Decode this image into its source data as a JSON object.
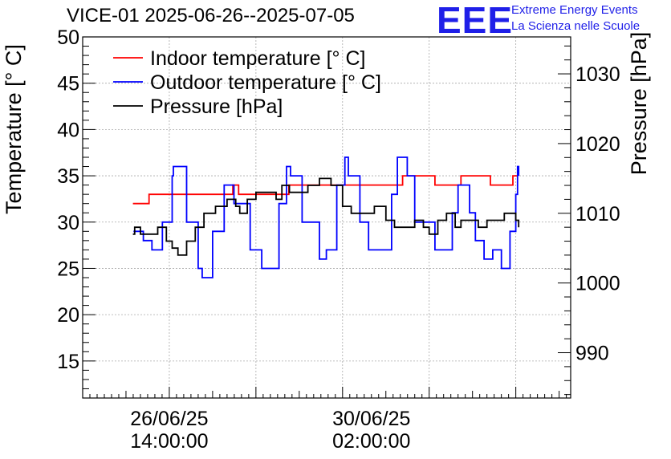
{
  "title": "VICE-01 2025-06-26--2025-07-05",
  "logo": {
    "mark": "EEE",
    "line1": "Extreme Energy Events",
    "line2": "La Scienza nelle Scuole"
  },
  "chart_data": {
    "type": "line",
    "title": "VICE-01 2025-06-26--2025-07-05",
    "y_left": {
      "label": "Temperature [° C]",
      "range": [
        11,
        50
      ],
      "ticks": [
        15,
        20,
        25,
        30,
        35,
        40,
        45,
        50
      ]
    },
    "y_right": {
      "label": "Pressure [hPa]",
      "range": [
        983.5,
        1035.3
      ],
      "ticks": [
        990,
        1000,
        1010,
        1020,
        1030
      ]
    },
    "x": {
      "range": [
        -1.5,
        6.95
      ],
      "unit": "days from 26/06/25 14:00:00",
      "tick_labels": [
        {
          "at": 0,
          "date": "26/06/25",
          "time": "14:00:00"
        },
        {
          "at": 3.5,
          "date": "30/06/25",
          "time": "02:00:00"
        }
      ]
    },
    "grid": true,
    "legend": {
      "placement": "top-left",
      "entries": [
        {
          "label": "Indoor temperature [° C]",
          "color": "#ff0000"
        },
        {
          "label": "Outdoor temperature [° C]",
          "color": "#0000ff"
        },
        {
          "label": "Pressure [hPa]",
          "color": "#000000"
        }
      ]
    },
    "series": [
      {
        "name": "Indoor temperature [° C]",
        "axis": "left",
        "color": "#ff0000",
        "points": [
          [
            -0.63,
            32
          ],
          [
            -0.35,
            32
          ],
          [
            -0.35,
            33
          ],
          [
            1.1,
            33
          ],
          [
            1.1,
            34
          ],
          [
            1.2,
            34
          ],
          [
            1.2,
            33
          ],
          [
            2.07,
            33
          ],
          [
            2.07,
            34
          ],
          [
            4.04,
            34
          ],
          [
            4.04,
            35
          ],
          [
            4.6,
            35
          ],
          [
            4.6,
            34
          ],
          [
            5.05,
            34
          ],
          [
            5.05,
            35
          ],
          [
            5.56,
            35
          ],
          [
            5.56,
            34
          ],
          [
            5.95,
            34
          ],
          [
            5.95,
            35
          ],
          [
            6.03,
            35
          ]
        ]
      },
      {
        "name": "Outdoor temperature [° C]",
        "axis": "left",
        "color": "#0000ff",
        "points": [
          [
            -0.62,
            29
          ],
          [
            -0.45,
            28
          ],
          [
            -0.3,
            27
          ],
          [
            -0.12,
            30
          ],
          [
            0.05,
            35
          ],
          [
            0.07,
            36
          ],
          [
            0.12,
            36
          ],
          [
            0.3,
            30
          ],
          [
            0.5,
            25
          ],
          [
            0.57,
            24
          ],
          [
            0.75,
            29
          ],
          [
            0.95,
            34
          ],
          [
            1.02,
            34
          ],
          [
            1.12,
            32
          ],
          [
            1.4,
            27
          ],
          [
            1.6,
            25
          ],
          [
            1.7,
            25
          ],
          [
            1.9,
            32
          ],
          [
            2.03,
            36
          ],
          [
            2.1,
            35
          ],
          [
            2.3,
            30
          ],
          [
            2.6,
            26
          ],
          [
            2.72,
            27
          ],
          [
            2.9,
            34
          ],
          [
            3.04,
            37
          ],
          [
            3.1,
            35
          ],
          [
            3.3,
            30
          ],
          [
            3.45,
            27
          ],
          [
            3.6,
            27
          ],
          [
            3.85,
            33
          ],
          [
            3.95,
            37
          ],
          [
            4.02,
            37
          ],
          [
            4.12,
            35
          ],
          [
            4.25,
            30
          ],
          [
            4.3,
            30
          ],
          [
            4.5,
            30
          ],
          [
            4.6,
            27
          ],
          [
            4.75,
            27
          ],
          [
            4.9,
            31
          ],
          [
            5.0,
            34
          ],
          [
            5.08,
            34
          ],
          [
            5.2,
            31
          ],
          [
            5.3,
            28
          ],
          [
            5.45,
            26
          ],
          [
            5.6,
            27
          ],
          [
            5.75,
            25
          ],
          [
            5.9,
            29
          ],
          [
            6.0,
            33
          ],
          [
            6.03,
            36
          ],
          [
            6.05,
            35
          ]
        ]
      },
      {
        "name": "Pressure [hPa]",
        "axis": "right",
        "color": "#000000",
        "points": [
          [
            -0.63,
            1007
          ],
          [
            -0.6,
            1008
          ],
          [
            -0.5,
            1007
          ],
          [
            -0.35,
            1007
          ],
          [
            -0.2,
            1008
          ],
          [
            -0.05,
            1006
          ],
          [
            0.05,
            1005
          ],
          [
            0.15,
            1004
          ],
          [
            0.3,
            1006
          ],
          [
            0.45,
            1008
          ],
          [
            0.6,
            1010
          ],
          [
            0.8,
            1011
          ],
          [
            1.0,
            1012
          ],
          [
            1.15,
            1011
          ],
          [
            1.22,
            1010
          ],
          [
            1.35,
            1012
          ],
          [
            1.5,
            1013
          ],
          [
            1.7,
            1013
          ],
          [
            1.85,
            1012
          ],
          [
            1.95,
            1014
          ],
          [
            2.08,
            1013
          ],
          [
            2.2,
            1013
          ],
          [
            2.4,
            1014
          ],
          [
            2.6,
            1015
          ],
          [
            2.8,
            1014
          ],
          [
            3.0,
            1011
          ],
          [
            3.15,
            1010
          ],
          [
            3.3,
            1010
          ],
          [
            3.55,
            1011
          ],
          [
            3.75,
            1009
          ],
          [
            3.9,
            1008
          ],
          [
            4.05,
            1008
          ],
          [
            4.25,
            1009
          ],
          [
            4.4,
            1008
          ],
          [
            4.5,
            1007
          ],
          [
            4.65,
            1009
          ],
          [
            4.8,
            1010
          ],
          [
            4.95,
            1008
          ],
          [
            5.05,
            1009
          ],
          [
            5.25,
            1009
          ],
          [
            5.35,
            1008
          ],
          [
            5.5,
            1009
          ],
          [
            5.65,
            1009
          ],
          [
            5.8,
            1010
          ],
          [
            5.9,
            1010
          ],
          [
            6.0,
            1009
          ],
          [
            6.05,
            1008
          ]
        ]
      }
    ]
  }
}
